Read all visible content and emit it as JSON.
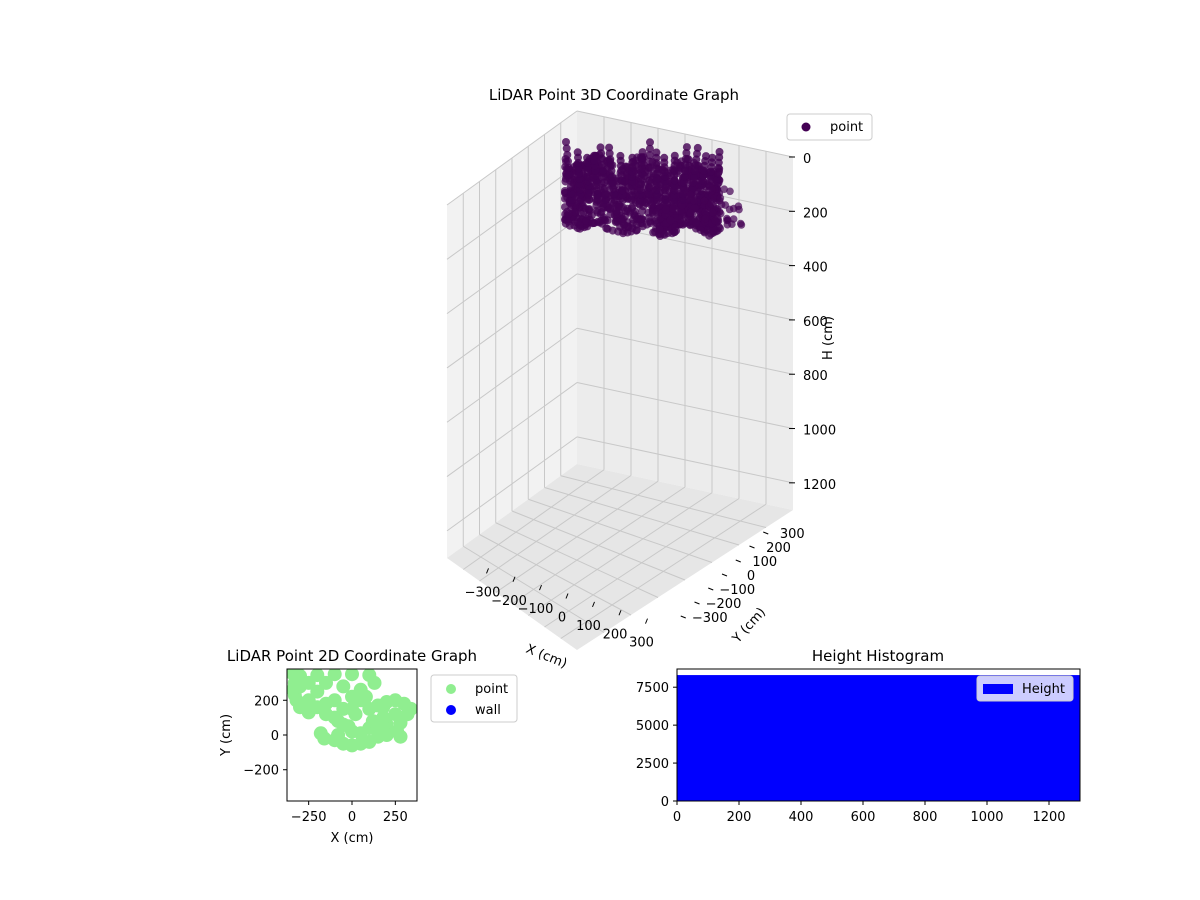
{
  "colors": {
    "point3d": "#440154",
    "point2d": "#90ee90",
    "wall": "#0000ff",
    "hist": "#0000ff",
    "pane_left": "#f2f2f2",
    "pane_right": "#ececec",
    "pane_floor": "#e6e6e6",
    "grid": "#c8c8c8"
  },
  "chart_data": [
    {
      "type": "scatter",
      "title": "LiDAR Point 3D Coordinate Graph",
      "xlabel": "X (cm)",
      "ylabel": "Y (cm)",
      "zlabel": "H (cm)",
      "xlim": [
        -400,
        400
      ],
      "ylim": [
        -400,
        400
      ],
      "zlim": [
        0,
        1300
      ],
      "z_inverted": true,
      "xticks": [
        "−300",
        "−200",
        "−100",
        "0",
        "100",
        "200",
        "300"
      ],
      "yticks": [
        "−300",
        "−200",
        "−100",
        "0",
        "100",
        "200",
        "300"
      ],
      "zticks": [
        "0",
        "200",
        "400",
        "600",
        "800",
        "1000",
        "1200"
      ],
      "grid": true,
      "legend": {
        "position": "top-right",
        "entries": [
          "point"
        ]
      },
      "series": [
        {
          "name": "point",
          "color": "#440154",
          "x_range": [
            -350,
            350
          ],
          "y_range": [
            -80,
            380
          ],
          "h_range": [
            0,
            250
          ]
        }
      ]
    },
    {
      "type": "scatter",
      "title": "LiDAR Point 2D Coordinate Graph",
      "xlabel": "X (cm)",
      "ylabel": "Y (cm)",
      "xlim": [
        -375,
        375
      ],
      "ylim": [
        -380,
        380
      ],
      "xticks": [
        "−250",
        "0",
        "250"
      ],
      "yticks": [
        "−200",
        "0",
        "200"
      ],
      "legend": {
        "position": "right-outside",
        "entries": [
          "point",
          "wall"
        ]
      },
      "series": [
        {
          "name": "point",
          "color": "#90ee90",
          "points": [
            [
              -350,
              360
            ],
            [
              -300,
              340
            ],
            [
              -200,
              345
            ],
            [
              -100,
              350
            ],
            [
              0,
              350
            ],
            [
              100,
              345
            ],
            [
              130,
              300
            ],
            [
              -330,
              300
            ],
            [
              -340,
              260
            ],
            [
              -330,
              230
            ],
            [
              -320,
              200
            ],
            [
              -300,
              160
            ],
            [
              -250,
              130
            ],
            [
              -150,
              120
            ],
            [
              -100,
              100
            ],
            [
              -80,
              80
            ],
            [
              -50,
              60
            ],
            [
              0,
              150
            ],
            [
              100,
              150
            ],
            [
              150,
              170
            ],
            [
              180,
              160
            ],
            [
              200,
              190
            ],
            [
              250,
              200
            ],
            [
              300,
              180
            ],
            [
              340,
              150
            ],
            [
              320,
              120
            ],
            [
              250,
              120
            ],
            [
              280,
              70
            ],
            [
              200,
              60
            ],
            [
              150,
              50
            ],
            [
              100,
              40
            ],
            [
              -180,
              10
            ],
            [
              -160,
              -20
            ],
            [
              -100,
              -30
            ],
            [
              -50,
              -50
            ],
            [
              0,
              -60
            ],
            [
              50,
              -50
            ],
            [
              100,
              -40
            ],
            [
              150,
              -10
            ],
            [
              200,
              0
            ],
            [
              260,
              20
            ],
            [
              280,
              -10
            ],
            [
              -300,
              280
            ],
            [
              -250,
              300
            ],
            [
              -150,
              300
            ],
            [
              -50,
              280
            ],
            [
              50,
              260
            ],
            [
              80,
              220
            ],
            [
              -200,
              250
            ],
            [
              -100,
              200
            ],
            [
              0,
              220
            ],
            [
              50,
              200
            ],
            [
              -250,
              200
            ],
            [
              -150,
              180
            ],
            [
              -50,
              150
            ],
            [
              20,
              120
            ],
            [
              -20,
              50
            ],
            [
              0,
              20
            ],
            [
              -80,
              0
            ],
            [
              50,
              10
            ],
            [
              120,
              80
            ],
            [
              180,
              100
            ],
            [
              -280,
              180
            ],
            [
              -200,
              160
            ]
          ]
        },
        {
          "name": "wall",
          "color": "#0000ff",
          "points": []
        }
      ]
    },
    {
      "type": "bar",
      "title": "Height Histogram",
      "xlim": [
        0,
        1300
      ],
      "ylim": [
        0,
        8700
      ],
      "xticks": [
        0,
        200,
        400,
        600,
        800,
        1000,
        1200
      ],
      "yticks": [
        0,
        2500,
        5000,
        7500
      ],
      "legend": {
        "position": "top-right",
        "entries": [
          "Height"
        ]
      },
      "series": [
        {
          "name": "Height",
          "color": "#0000ff",
          "bins": [
            {
              "from": 0,
              "to": 1300,
              "count": 8300
            }
          ]
        }
      ]
    }
  ]
}
